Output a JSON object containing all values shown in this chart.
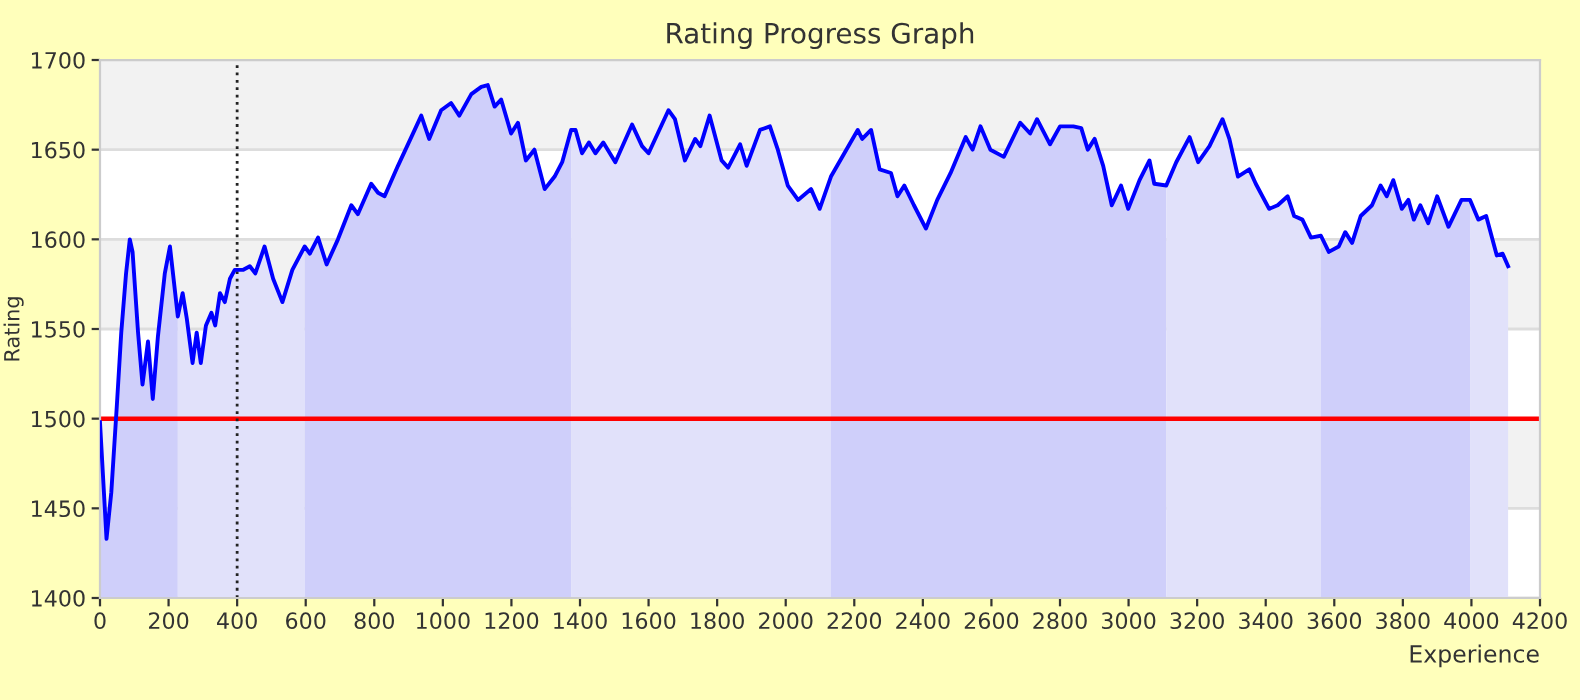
{
  "chart_data": {
    "type": "line",
    "title": "Rating Progress Graph",
    "xlabel": "Experience",
    "ylabel": "Rating",
    "xlim": [
      0,
      4200
    ],
    "xticks": [
      0,
      200,
      400,
      600,
      800,
      1000,
      1200,
      1400,
      1600,
      1800,
      2000,
      2200,
      2400,
      2600,
      2800,
      3000,
      3200,
      3400,
      3600,
      3800,
      4000,
      4200
    ],
    "ylim": [
      1400,
      1700
    ],
    "yticks": [
      1400,
      1450,
      1500,
      1550,
      1600,
      1650,
      1700
    ],
    "grid": "y",
    "marker": "none",
    "line_style": "solid",
    "bands": [
      {
        "axis": "y",
        "from": 1450,
        "to": 1500,
        "color": "#f2f2f2"
      },
      {
        "axis": "y",
        "from": 1550,
        "to": 1600,
        "color": "#f2f2f2"
      },
      {
        "axis": "y",
        "from": 1650,
        "to": 1700,
        "color": "#f2f2f2"
      }
    ],
    "ref_lines": [
      {
        "axis": "y",
        "value": 1500,
        "color": "#ff0000",
        "line_style": "solid"
      },
      {
        "axis": "x",
        "value": 400,
        "color": "#222222",
        "line_style": "dotted"
      }
    ],
    "series": [
      {
        "type": "area",
        "color": "#cfcffa",
        "x": [
          0,
          19,
          33,
          49,
          62,
          76,
          87,
          95,
          111,
          124,
          140,
          154,
          169,
          189,
          204,
          227
        ],
        "values": [
          1498,
          1433,
          1459,
          1507,
          1548,
          1581,
          1600,
          1593,
          1548,
          1519,
          1543,
          1511,
          1546,
          1581,
          1596,
          1557
        ]
      },
      {
        "type": "area",
        "color": "#e1e1fa",
        "x": [
          227,
          241,
          253,
          270,
          282,
          294,
          309,
          325,
          336,
          350,
          364,
          379,
          393,
          418,
          437,
          453,
          480,
          505,
          532,
          561,
          597
        ],
        "values": [
          1557,
          1570,
          1556,
          1531,
          1548,
          1531,
          1552,
          1559,
          1552,
          1570,
          1565,
          1578,
          1583,
          1583,
          1585,
          1581,
          1596,
          1578,
          1565,
          1583,
          1596
        ]
      },
      {
        "type": "area",
        "color": "#cfcffa",
        "x": [
          597,
          612,
          636,
          661,
          694,
          733,
          752,
          791,
          811,
          830,
          869,
          908,
          937,
          960,
          995,
          1024,
          1048,
          1083,
          1112,
          1131,
          1151,
          1170,
          1199,
          1219,
          1242,
          1267,
          1297,
          1326,
          1348,
          1374
        ],
        "values": [
          1596,
          1592,
          1601,
          1586,
          1600,
          1619,
          1614,
          1631,
          1626,
          1624,
          1641,
          1657,
          1669,
          1656,
          1672,
          1676,
          1669,
          1681,
          1685,
          1686,
          1674,
          1678,
          1659,
          1665,
          1644,
          1650,
          1628,
          1635,
          1643,
          1661
        ]
      },
      {
        "type": "area",
        "color": "#e1e1fa",
        "x": [
          1374,
          1387,
          1406,
          1426,
          1445,
          1468,
          1503,
          1552,
          1581,
          1600,
          1658,
          1677,
          1706,
          1736,
          1751,
          1778,
          1813,
          1832,
          1867,
          1886,
          1925,
          1954,
          1977,
          2006,
          2036,
          2074,
          2099,
          2132
        ],
        "values": [
          1661,
          1661,
          1648,
          1654,
          1648,
          1654,
          1643,
          1664,
          1652,
          1648,
          1672,
          1667,
          1644,
          1656,
          1652,
          1669,
          1644,
          1640,
          1653,
          1641,
          1661,
          1663,
          1650,
          1630,
          1622,
          1628,
          1617,
          1635
        ]
      },
      {
        "type": "area",
        "color": "#cfcffa",
        "x": [
          2132,
          2171,
          2210,
          2223,
          2249,
          2274,
          2307,
          2326,
          2346,
          2374,
          2409,
          2442,
          2481,
          2525,
          2545,
          2568,
          2597,
          2636,
          2684,
          2713,
          2733,
          2771,
          2800,
          2839,
          2862,
          2881,
          2901,
          2926,
          2951,
          2978,
          2999,
          3032,
          3061,
          3075,
          3110
        ],
        "values": [
          1635,
          1648,
          1661,
          1656,
          1661,
          1639,
          1637,
          1624,
          1630,
          1619,
          1606,
          1622,
          1637,
          1657,
          1650,
          1663,
          1650,
          1646,
          1665,
          1659,
          1667,
          1653,
          1663,
          1663,
          1662,
          1650,
          1656,
          1641,
          1619,
          1630,
          1617,
          1633,
          1644,
          1631,
          1630
        ]
      },
      {
        "type": "area",
        "color": "#e1e1fa",
        "x": [
          3110,
          3139,
          3178,
          3203,
          3236,
          3274,
          3294,
          3319,
          3352,
          3371,
          3410,
          3435,
          3464,
          3483,
          3507,
          3532,
          3561
        ],
        "values": [
          1630,
          1643,
          1657,
          1643,
          1652,
          1667,
          1656,
          1635,
          1639,
          1631,
          1617,
          1619,
          1624,
          1613,
          1611,
          1601,
          1602
        ]
      },
      {
        "type": "area",
        "color": "#cfcffa",
        "x": [
          3561,
          3584,
          3613,
          3632,
          3652,
          3677,
          3710,
          3735,
          3753,
          3772,
          3797,
          3816,
          3832,
          3851,
          3874,
          3900,
          3933,
          3971,
          3996
        ],
        "values": [
          1602,
          1593,
          1596,
          1604,
          1598,
          1613,
          1619,
          1630,
          1624,
          1633,
          1617,
          1622,
          1611,
          1619,
          1609,
          1624,
          1607,
          1622,
          1622
        ]
      },
      {
        "type": "area",
        "color": "#e1e1fa",
        "x": [
          3996,
          4020,
          4043,
          4074,
          4091,
          4107
        ],
        "values": [
          1622,
          1611,
          1613,
          1591,
          1592,
          1585
        ]
      },
      {
        "color": "#0000ff",
        "x": [
          0,
          19,
          33,
          49,
          62,
          76,
          87,
          95,
          111,
          124,
          140,
          154,
          169,
          189,
          204,
          227,
          241,
          253,
          270,
          282,
          294,
          309,
          325,
          336,
          350,
          364,
          379,
          393,
          418,
          437,
          453,
          480,
          505,
          532,
          561,
          597,
          612,
          636,
          661,
          694,
          733,
          752,
          791,
          811,
          830,
          869,
          908,
          937,
          960,
          995,
          1024,
          1048,
          1083,
          1112,
          1131,
          1151,
          1170,
          1199,
          1219,
          1242,
          1267,
          1297,
          1326,
          1348,
          1374,
          1387,
          1406,
          1426,
          1445,
          1468,
          1503,
          1552,
          1581,
          1600,
          1658,
          1677,
          1706,
          1736,
          1751,
          1778,
          1813,
          1832,
          1867,
          1886,
          1925,
          1954,
          1977,
          2006,
          2036,
          2074,
          2099,
          2132,
          2171,
          2210,
          2223,
          2249,
          2274,
          2307,
          2326,
          2346,
          2374,
          2409,
          2442,
          2481,
          2525,
          2545,
          2568,
          2597,
          2636,
          2684,
          2713,
          2733,
          2771,
          2800,
          2839,
          2862,
          2881,
          2901,
          2926,
          2951,
          2978,
          2999,
          3032,
          3061,
          3075,
          3110,
          3139,
          3178,
          3203,
          3236,
          3274,
          3294,
          3319,
          3352,
          3371,
          3410,
          3435,
          3464,
          3483,
          3507,
          3532,
          3561,
          3584,
          3613,
          3632,
          3652,
          3677,
          3710,
          3735,
          3753,
          3772,
          3797,
          3816,
          3832,
          3851,
          3874,
          3900,
          3933,
          3971,
          3996,
          4020,
          4043,
          4074,
          4091,
          4107
        ],
        "values": [
          1498,
          1433,
          1459,
          1507,
          1548,
          1581,
          1600,
          1593,
          1548,
          1519,
          1543,
          1511,
          1546,
          1581,
          1596,
          1557,
          1570,
          1556,
          1531,
          1548,
          1531,
          1552,
          1559,
          1552,
          1570,
          1565,
          1578,
          1583,
          1583,
          1585,
          1581,
          1596,
          1578,
          1565,
          1583,
          1596,
          1592,
          1601,
          1586,
          1600,
          1619,
          1614,
          1631,
          1626,
          1624,
          1641,
          1657,
          1669,
          1656,
          1672,
          1676,
          1669,
          1681,
          1685,
          1686,
          1674,
          1678,
          1659,
          1665,
          1644,
          1650,
          1628,
          1635,
          1643,
          1661,
          1661,
          1648,
          1654,
          1648,
          1654,
          1643,
          1664,
          1652,
          1648,
          1672,
          1667,
          1644,
          1656,
          1652,
          1669,
          1644,
          1640,
          1653,
          1641,
          1661,
          1663,
          1650,
          1630,
          1622,
          1628,
          1617,
          1635,
          1648,
          1661,
          1656,
          1661,
          1639,
          1637,
          1624,
          1630,
          1619,
          1606,
          1622,
          1637,
          1657,
          1650,
          1663,
          1650,
          1646,
          1665,
          1659,
          1667,
          1653,
          1663,
          1663,
          1662,
          1650,
          1656,
          1641,
          1619,
          1630,
          1617,
          1633,
          1644,
          1631,
          1630,
          1643,
          1657,
          1643,
          1652,
          1667,
          1656,
          1635,
          1639,
          1631,
          1617,
          1619,
          1624,
          1613,
          1611,
          1601,
          1602,
          1593,
          1596,
          1604,
          1598,
          1613,
          1619,
          1630,
          1624,
          1633,
          1617,
          1622,
          1611,
          1619,
          1609,
          1624,
          1607,
          1622,
          1622,
          1611,
          1613,
          1591,
          1592,
          1585
        ]
      }
    ]
  }
}
